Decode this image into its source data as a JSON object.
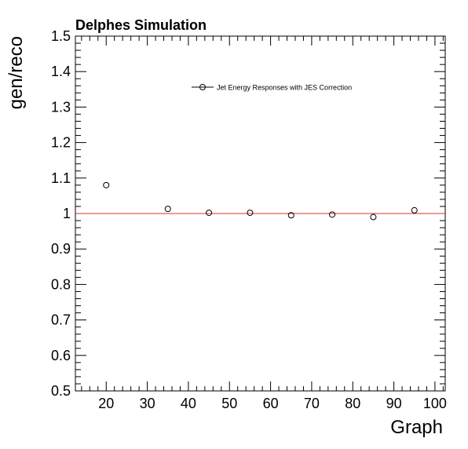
{
  "chart_data": {
    "type": "scatter",
    "title": "Delphes Simulation",
    "xlabel": "Graph",
    "ylabel": "gen/reco",
    "xlim": [
      12.5,
      102.5
    ],
    "ylim": [
      0.5,
      1.5
    ],
    "xticks": [
      20,
      30,
      40,
      50,
      60,
      70,
      80,
      90,
      100
    ],
    "yticks": [
      0.5,
      0.6,
      0.7,
      0.8,
      0.9,
      1,
      1.1,
      1.2,
      1.3,
      1.4,
      1.5
    ],
    "grid": false,
    "legend_position": "top-center",
    "reference_line": {
      "y": 1,
      "color": "#e03030"
    },
    "series": [
      {
        "name": "Jet Energy Responses with JES Correction",
        "marker": "open-circle",
        "color": "#000000",
        "x": [
          20,
          35,
          45,
          55,
          65,
          75,
          85,
          95
        ],
        "y": [
          1.08,
          1.013,
          1.002,
          1.002,
          0.995,
          0.997,
          0.99,
          1.009
        ]
      }
    ]
  }
}
